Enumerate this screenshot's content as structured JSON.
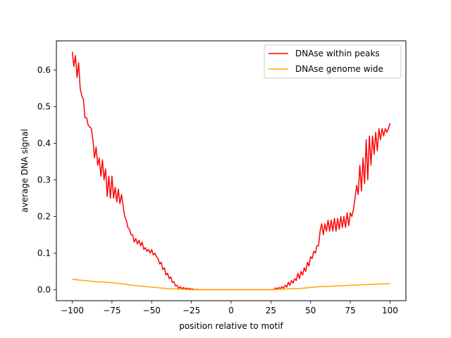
{
  "chart_data": {
    "type": "line",
    "title": "",
    "xlabel": "position relative to motif",
    "ylabel": "average DNA signal",
    "xlim": [
      -110,
      110
    ],
    "ylim": [
      -0.03,
      0.68
    ],
    "xticks": [
      -100,
      -75,
      -50,
      -25,
      0,
      25,
      50,
      75,
      100
    ],
    "yticks": [
      0.0,
      0.1,
      0.2,
      0.3,
      0.4,
      0.5,
      0.6
    ],
    "grid": false,
    "legend_position": "top-right",
    "series": [
      {
        "name": "DNAse within peaks",
        "color": "#ff0000",
        "points": [
          [
            -100,
            0.65
          ],
          [
            -99,
            0.61
          ],
          [
            -98,
            0.64
          ],
          [
            -97,
            0.58
          ],
          [
            -96,
            0.62
          ],
          [
            -95,
            0.55
          ],
          [
            -94,
            0.53
          ],
          [
            -93,
            0.52
          ],
          [
            -92,
            0.47
          ],
          [
            -91,
            0.47
          ],
          [
            -90,
            0.45
          ],
          [
            -89,
            0.445
          ],
          [
            -88,
            0.44
          ],
          [
            -87,
            0.41
          ],
          [
            -86,
            0.36
          ],
          [
            -85,
            0.39
          ],
          [
            -84,
            0.34
          ],
          [
            -83,
            0.36
          ],
          [
            -82,
            0.31
          ],
          [
            -81,
            0.355
          ],
          [
            -80,
            0.3
          ],
          [
            -79,
            0.33
          ],
          [
            -78,
            0.255
          ],
          [
            -77,
            0.31
          ],
          [
            -76,
            0.25
          ],
          [
            -75,
            0.31
          ],
          [
            -74,
            0.25
          ],
          [
            -73,
            0.28
          ],
          [
            -72,
            0.24
          ],
          [
            -71,
            0.275
          ],
          [
            -70,
            0.235
          ],
          [
            -69,
            0.26
          ],
          [
            -68,
            0.23
          ],
          [
            -67,
            0.2
          ],
          [
            -66,
            0.19
          ],
          [
            -65,
            0.17
          ],
          [
            -64,
            0.165
          ],
          [
            -63,
            0.15
          ],
          [
            -62,
            0.15
          ],
          [
            -61,
            0.13
          ],
          [
            -60,
            0.14
          ],
          [
            -59,
            0.125
          ],
          [
            -58,
            0.135
          ],
          [
            -57,
            0.12
          ],
          [
            -56,
            0.13
          ],
          [
            -55,
            0.11
          ],
          [
            -54,
            0.115
          ],
          [
            -53,
            0.105
          ],
          [
            -52,
            0.11
          ],
          [
            -51,
            0.1
          ],
          [
            -50,
            0.11
          ],
          [
            -49,
            0.095
          ],
          [
            -48,
            0.1
          ],
          [
            -47,
            0.09
          ],
          [
            -46,
            0.085
          ],
          [
            -45,
            0.07
          ],
          [
            -44,
            0.075
          ],
          [
            -43,
            0.055
          ],
          [
            -42,
            0.06
          ],
          [
            -41,
            0.04
          ],
          [
            -40,
            0.045
          ],
          [
            -39,
            0.03
          ],
          [
            -38,
            0.035
          ],
          [
            -37,
            0.02
          ],
          [
            -36,
            0.022
          ],
          [
            -35,
            0.01
          ],
          [
            -34,
            0.012
          ],
          [
            -33,
            0.003
          ],
          [
            -32,
            0.008
          ],
          [
            -31,
            0.002
          ],
          [
            -30,
            0.006
          ],
          [
            -29,
            0.001
          ],
          [
            -28,
            0.005
          ],
          [
            -27,
            0.001
          ],
          [
            -26,
            0.004
          ],
          [
            -25,
            0.001
          ],
          [
            -24,
            0.002
          ],
          [
            -23,
            0.0
          ],
          [
            -22,
            0.001
          ],
          [
            -20,
            0.0
          ],
          [
            -15,
            0.0
          ],
          [
            -10,
            0.0
          ],
          [
            -5,
            0.0
          ],
          [
            0,
            0.0
          ],
          [
            5,
            0.0
          ],
          [
            10,
            0.0
          ],
          [
            15,
            0.0
          ],
          [
            20,
            0.0
          ],
          [
            25,
            0.0
          ],
          [
            26,
            0.001
          ],
          [
            27,
            0.0
          ],
          [
            28,
            0.005
          ],
          [
            29,
            0.002
          ],
          [
            30,
            0.006
          ],
          [
            31,
            0.003
          ],
          [
            32,
            0.008
          ],
          [
            33,
            0.004
          ],
          [
            34,
            0.012
          ],
          [
            35,
            0.007
          ],
          [
            36,
            0.02
          ],
          [
            37,
            0.012
          ],
          [
            38,
            0.025
          ],
          [
            39,
            0.018
          ],
          [
            40,
            0.03
          ],
          [
            41,
            0.025
          ],
          [
            42,
            0.045
          ],
          [
            43,
            0.03
          ],
          [
            44,
            0.05
          ],
          [
            45,
            0.04
          ],
          [
            46,
            0.06
          ],
          [
            47,
            0.05
          ],
          [
            48,
            0.075
          ],
          [
            49,
            0.065
          ],
          [
            50,
            0.09
          ],
          [
            51,
            0.085
          ],
          [
            52,
            0.105
          ],
          [
            53,
            0.1
          ],
          [
            54,
            0.12
          ],
          [
            55,
            0.12
          ],
          [
            56,
            0.16
          ],
          [
            57,
            0.18
          ],
          [
            58,
            0.15
          ],
          [
            59,
            0.18
          ],
          [
            60,
            0.16
          ],
          [
            61,
            0.19
          ],
          [
            62,
            0.16
          ],
          [
            63,
            0.19
          ],
          [
            64,
            0.16
          ],
          [
            65,
            0.195
          ],
          [
            66,
            0.16
          ],
          [
            67,
            0.195
          ],
          [
            68,
            0.165
          ],
          [
            69,
            0.2
          ],
          [
            70,
            0.17
          ],
          [
            71,
            0.2
          ],
          [
            72,
            0.17
          ],
          [
            73,
            0.21
          ],
          [
            74,
            0.175
          ],
          [
            75,
            0.21
          ],
          [
            76,
            0.2
          ],
          [
            77,
            0.22
          ],
          [
            78,
            0.25
          ],
          [
            79,
            0.285
          ],
          [
            80,
            0.26
          ],
          [
            81,
            0.34
          ],
          [
            82,
            0.27
          ],
          [
            83,
            0.36
          ],
          [
            84,
            0.29
          ],
          [
            85,
            0.41
          ],
          [
            86,
            0.3
          ],
          [
            87,
            0.42
          ],
          [
            88,
            0.34
          ],
          [
            89,
            0.42
          ],
          [
            90,
            0.37
          ],
          [
            91,
            0.43
          ],
          [
            92,
            0.38
          ],
          [
            93,
            0.44
          ],
          [
            94,
            0.41
          ],
          [
            95,
            0.44
          ],
          [
            96,
            0.42
          ],
          [
            97,
            0.44
          ],
          [
            98,
            0.43
          ],
          [
            99,
            0.44
          ],
          [
            100,
            0.455
          ]
        ]
      },
      {
        "name": "DNAse genome wide",
        "color": "#ffa500",
        "points": [
          [
            -100,
            0.029
          ],
          [
            -95,
            0.026
          ],
          [
            -90,
            0.024
          ],
          [
            -85,
            0.022
          ],
          [
            -80,
            0.021
          ],
          [
            -75,
            0.019
          ],
          [
            -70,
            0.017
          ],
          [
            -65,
            0.014
          ],
          [
            -60,
            0.011
          ],
          [
            -55,
            0.009
          ],
          [
            -50,
            0.007
          ],
          [
            -45,
            0.005
          ],
          [
            -40,
            0.003
          ],
          [
            -35,
            0.002
          ],
          [
            -30,
            0.001
          ],
          [
            -25,
            0.0
          ],
          [
            -20,
            0.0
          ],
          [
            -10,
            0.0
          ],
          [
            0,
            0.0
          ],
          [
            10,
            0.0
          ],
          [
            20,
            0.0
          ],
          [
            25,
            0.0
          ],
          [
            30,
            0.001
          ],
          [
            35,
            0.002
          ],
          [
            40,
            0.003
          ],
          [
            45,
            0.004
          ],
          [
            50,
            0.006
          ],
          [
            55,
            0.008
          ],
          [
            60,
            0.009
          ],
          [
            65,
            0.01
          ],
          [
            70,
            0.011
          ],
          [
            75,
            0.012
          ],
          [
            80,
            0.013
          ],
          [
            85,
            0.014
          ],
          [
            90,
            0.015
          ],
          [
            95,
            0.016
          ],
          [
            100,
            0.017
          ]
        ]
      }
    ]
  }
}
